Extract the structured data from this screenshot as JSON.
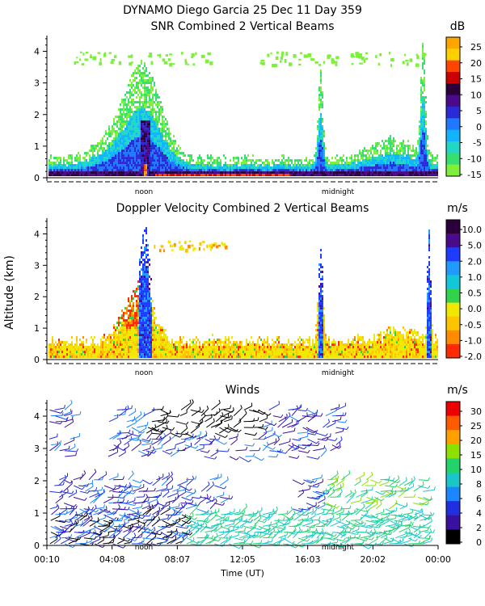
{
  "header": {
    "line1": "DYNAMO Diego Garcia  25 Dec 11 Day 359"
  },
  "chart_data": [
    {
      "type": "heatmap",
      "title": "SNR Combined 2 Vertical Beams",
      "ylabel": "",
      "ylim": [
        0,
        4.5
      ],
      "yticks": [
        "0",
        "1",
        "2",
        "3",
        "4"
      ],
      "markers": [
        "noon",
        "midnight"
      ],
      "colorbar": {
        "unit": "dB",
        "labels": [
          "25",
          "20",
          "15",
          "10",
          "5",
          "0",
          "-5",
          "-10",
          "-15"
        ],
        "colors": [
          "#ffa500",
          "#ffd000",
          "#ff4500",
          "#cc0000",
          "#2b003a",
          "#4b0a8c",
          "#2a2ad6",
          "#1f78ff",
          "#10b4ff",
          "#22d6c8",
          "#36e070",
          "#7cf03a"
        ]
      }
    },
    {
      "type": "heatmap",
      "title": "Doppler Velocity Combined 2 Vertical Beams",
      "ylabel": "Altitude (km)",
      "ylim": [
        0,
        4.5
      ],
      "yticks": [
        "0",
        "1",
        "2",
        "3",
        "4"
      ],
      "markers": [
        "noon",
        "midnight"
      ],
      "colorbar": {
        "unit": "m/s",
        "labels": [
          "10.0",
          "5.0",
          "2.0",
          "1.0",
          "0.5",
          "0.0",
          "-0.5",
          "-1.0",
          "-2.0"
        ],
        "colors": [
          "#2b003a",
          "#4b0a8c",
          "#1e3cff",
          "#1f9bff",
          "#12c8d8",
          "#30d34a",
          "#f0e800",
          "#ffc400",
          "#ff8c00",
          "#ff2a00"
        ]
      }
    },
    {
      "type": "scatter",
      "title": "Winds",
      "ylabel": "",
      "xlabel": "Time (UT)",
      "ylim": [
        0,
        4.5
      ],
      "yticks": [
        "0",
        "1",
        "2",
        "3",
        "4"
      ],
      "xticks": [
        "00:10",
        "04:08",
        "08:07",
        "12:05",
        "16:03",
        "20:02",
        "00:00"
      ],
      "markers": [
        "noon",
        "midnight"
      ],
      "colorbar": {
        "unit": "m/s",
        "labels": [
          "30",
          "25",
          "20",
          "15",
          "10",
          "8",
          "6",
          "4",
          "2",
          "0"
        ],
        "colors": [
          "#ee0000",
          "#ff5a00",
          "#ffa000",
          "#8ee000",
          "#22d36a",
          "#18c8c8",
          "#1a86ff",
          "#2030e0",
          "#3a10a0",
          "#000000"
        ]
      }
    }
  ]
}
